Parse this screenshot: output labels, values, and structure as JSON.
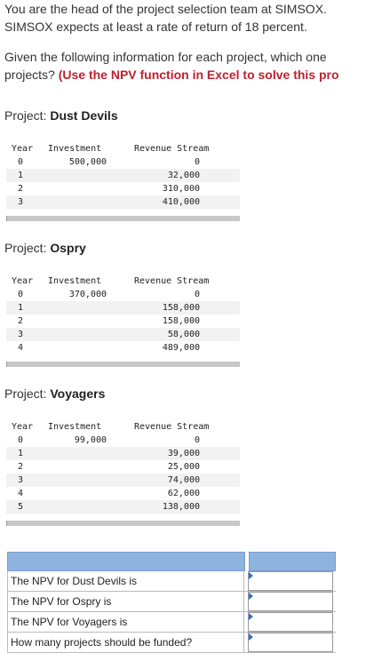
{
  "intro": {
    "line1": "You are the head of the project selection team at SIMSOX.",
    "line2": "SIMSOX expects at least a rate of return of 18 percent.",
    "line3": "Given the following information for each project, which one",
    "line4_plain": "projects? ",
    "line4_highlight": "(Use the NPV function in Excel to solve this pro"
  },
  "table_headers": {
    "year": "Year",
    "investment": "Investment",
    "revenue": "Revenue Stream"
  },
  "projects": [
    {
      "label": "Project: ",
      "name": "Dust Devils",
      "rows": [
        {
          "year": "0",
          "investment": "500,000",
          "revenue": "0"
        },
        {
          "year": "1",
          "investment": "",
          "revenue": "32,000"
        },
        {
          "year": "2",
          "investment": "",
          "revenue": "310,000"
        },
        {
          "year": "3",
          "investment": "",
          "revenue": "410,000"
        }
      ]
    },
    {
      "label": "Project: ",
      "name": "Ospry",
      "rows": [
        {
          "year": "0",
          "investment": "370,000",
          "revenue": "0"
        },
        {
          "year": "1",
          "investment": "",
          "revenue": "158,000"
        },
        {
          "year": "2",
          "investment": "",
          "revenue": "158,000"
        },
        {
          "year": "3",
          "investment": "",
          "revenue": "58,000"
        },
        {
          "year": "4",
          "investment": "",
          "revenue": "489,000"
        }
      ]
    },
    {
      "label": "Project: ",
      "name": "Voyagers",
      "rows": [
        {
          "year": "0",
          "investment": "99,000",
          "revenue": "0"
        },
        {
          "year": "1",
          "investment": "",
          "revenue": "39,000"
        },
        {
          "year": "2",
          "investment": "",
          "revenue": "25,000"
        },
        {
          "year": "3",
          "investment": "",
          "revenue": "74,000"
        },
        {
          "year": "4",
          "investment": "",
          "revenue": "62,000"
        },
        {
          "year": "5",
          "investment": "",
          "revenue": "138,000"
        }
      ]
    }
  ],
  "answer_rows": [
    {
      "label": "The NPV for Dust Devils is",
      "value": ""
    },
    {
      "label": "The NPV for Ospry is",
      "value": ""
    },
    {
      "label": "The NPV for Voyagers is",
      "value": ""
    },
    {
      "label": "How many projects should be funded?",
      "value": ""
    }
  ],
  "colors": {
    "highlight": "#c0202f",
    "answer_header": "#8fb3df",
    "input_marker": "#2f6fd0"
  }
}
